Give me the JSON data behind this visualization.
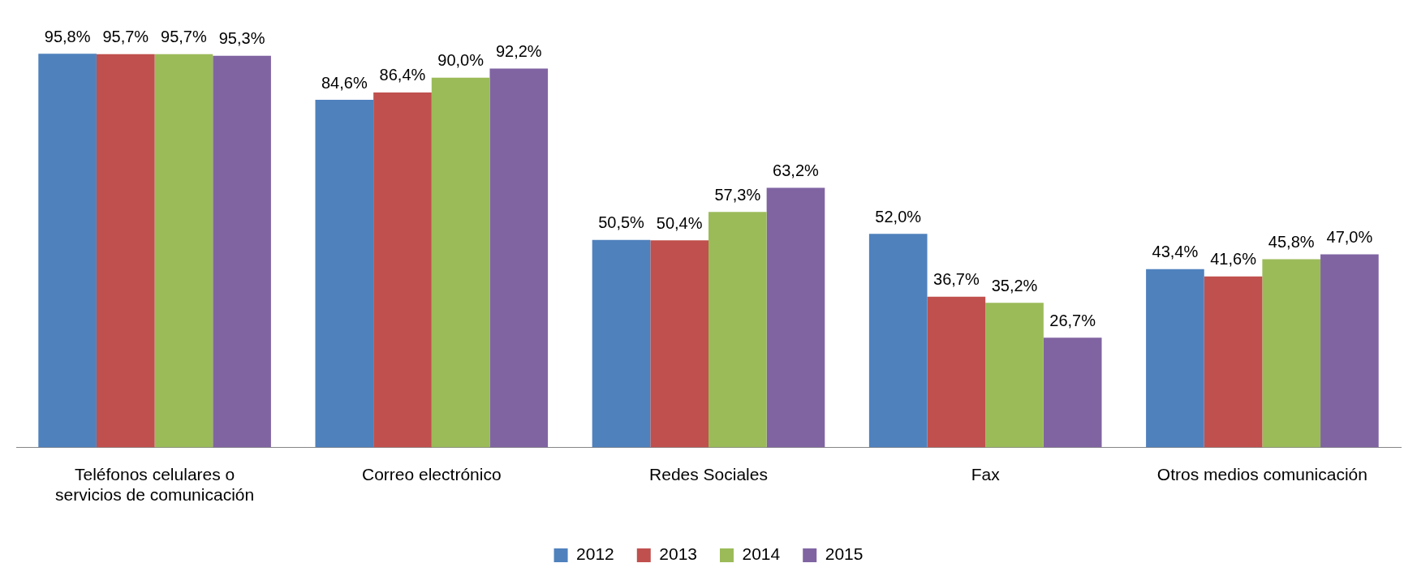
{
  "chart_data": {
    "type": "bar",
    "categories": [
      "Teléfonos celulares o servicios de comunicación",
      "Correo electrónico",
      "Redes Sociales",
      "Fax",
      "Otros medios comunicación"
    ],
    "series": [
      {
        "name": "2012",
        "color": "#4f81bd",
        "values": [
          95.8,
          84.6,
          50.5,
          52.0,
          43.4
        ],
        "value_labels": [
          "95,8%",
          "84,6%",
          "50,5%",
          "52,0%",
          "43,4%"
        ]
      },
      {
        "name": "2013",
        "color": "#c0504d",
        "values": [
          95.7,
          86.4,
          50.4,
          36.7,
          41.6
        ],
        "value_labels": [
          "95,7%",
          "86,4%",
          "50,4%",
          "36,7%",
          "41,6%"
        ]
      },
      {
        "name": "2014",
        "color": "#9bbb59",
        "values": [
          95.7,
          90.0,
          57.3,
          35.2,
          45.8
        ],
        "value_labels": [
          "95,7%",
          "90,0%",
          "57,3%",
          "35,2%",
          "45,8%"
        ]
      },
      {
        "name": "2015",
        "color": "#8064a2",
        "values": [
          95.3,
          92.2,
          63.2,
          26.7,
          47.0
        ],
        "value_labels": [
          "95,3%",
          "92,2%",
          "63,2%",
          "26,7%",
          "47,0%"
        ]
      }
    ],
    "grid": false,
    "legend": "bottom",
    "tick_labels": "x"
  }
}
